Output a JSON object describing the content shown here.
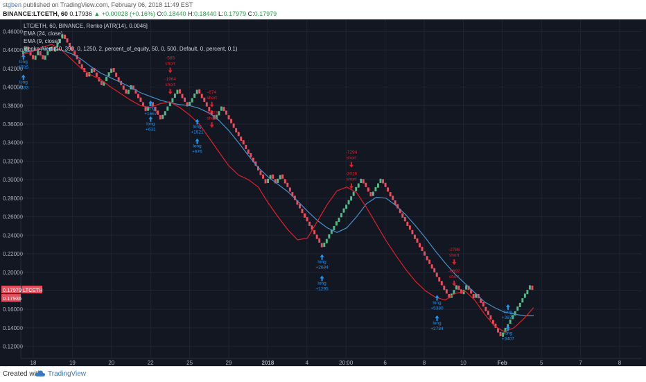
{
  "header": {
    "author": "stgben",
    "published": "published on TradingView.com, February 06, 2018 11:49 EST",
    "symbol": "BINANCE:LTCETH, 60",
    "last": "0.17936",
    "change": "▲ +0.00028 (+0.16%)",
    "o_label": "O:",
    "o_value": "0.18440",
    "h_label": "H:",
    "h_value": "0.18440",
    "l_label": "L:",
    "l_value": "0.17979",
    "c_label": "C:",
    "c_value": "0.17979"
  },
  "legend": [
    "LTC/ETH, 60, BINANCE, Renko [ATR(14), 0.0046]",
    "EMA (24, close)",
    "EMA (9, close)",
    "Renko Alert (10, 390, 0, 1250, 2, percent_of_equity, 50, 0, 500, Default, 0, percent, 0.1)"
  ],
  "footer": {
    "created": "Created with",
    "brand": "TradingView"
  },
  "colors": {
    "up": "#53b987",
    "down": "#eb4d5c",
    "ema24": "#4a90c8",
    "ema9": "#e0202a",
    "bg": "#131722",
    "grid": "#1f2433",
    "axis_text": "#b2b5be",
    "long": "#2196f3",
    "short": "#e0202a"
  },
  "chart_data": {
    "type": "renko",
    "ylim": [
      0.11,
      0.47
    ],
    "y_ticks": [
      "0.46000",
      "0.44000",
      "0.42000",
      "0.40000",
      "0.38000",
      "0.36000",
      "0.34000",
      "0.32000",
      "0.30000",
      "0.28000",
      "0.26000",
      "0.24000",
      "0.22000",
      "0.20000",
      "0.18000",
      "0.16000",
      "0.14000",
      "0.12000"
    ],
    "x_ticks": [
      "18",
      "19",
      "20",
      "22",
      "25",
      "29",
      "2018",
      "4",
      "20:00",
      "6",
      "8",
      "10",
      "Feb",
      "5",
      "7",
      "8"
    ],
    "price_tags": [
      {
        "text": "0.17979",
        "label": "LTCETH"
      },
      {
        "text": "0.17936"
      }
    ],
    "brick_size": 0.0046,
    "bricks": [
      0.439,
      0.443,
      0.439,
      0.434,
      0.43,
      0.434,
      0.439,
      0.434,
      0.43,
      0.434,
      0.439,
      0.443,
      0.439,
      0.443,
      0.448,
      0.452,
      0.457,
      0.452,
      0.448,
      0.443,
      0.439,
      0.434,
      0.43,
      0.425,
      0.42,
      0.416,
      0.411,
      0.416,
      0.42,
      0.416,
      0.411,
      0.406,
      0.402,
      0.406,
      0.411,
      0.416,
      0.42,
      0.416,
      0.411,
      0.406,
      0.402,
      0.397,
      0.393,
      0.397,
      0.402,
      0.397,
      0.393,
      0.388,
      0.384,
      0.379,
      0.374,
      0.379,
      0.384,
      0.379,
      0.374,
      0.37,
      0.365,
      0.37,
      0.374,
      0.379,
      0.384,
      0.388,
      0.393,
      0.397,
      0.393,
      0.388,
      0.384,
      0.379,
      0.384,
      0.388,
      0.393,
      0.397,
      0.393,
      0.388,
      0.384,
      0.379,
      0.374,
      0.37,
      0.365,
      0.37,
      0.374,
      0.379,
      0.374,
      0.37,
      0.365,
      0.361,
      0.356,
      0.351,
      0.347,
      0.342,
      0.338,
      0.333,
      0.328,
      0.324,
      0.319,
      0.315,
      0.31,
      0.305,
      0.301,
      0.296,
      0.301,
      0.305,
      0.301,
      0.296,
      0.301,
      0.305,
      0.301,
      0.296,
      0.292,
      0.287,
      0.282,
      0.278,
      0.273,
      0.269,
      0.264,
      0.259,
      0.255,
      0.25,
      0.246,
      0.241,
      0.236,
      0.232,
      0.227,
      0.232,
      0.236,
      0.241,
      0.246,
      0.25,
      0.255,
      0.259,
      0.264,
      0.269,
      0.273,
      0.278,
      0.282,
      0.287,
      0.292,
      0.296,
      0.301,
      0.296,
      0.292,
      0.287,
      0.282,
      0.287,
      0.292,
      0.296,
      0.301,
      0.296,
      0.292,
      0.287,
      0.282,
      0.278,
      0.273,
      0.269,
      0.264,
      0.259,
      0.255,
      0.25,
      0.246,
      0.241,
      0.236,
      0.232,
      0.227,
      0.223,
      0.218,
      0.213,
      0.209,
      0.204,
      0.2,
      0.195,
      0.19,
      0.186,
      0.181,
      0.177,
      0.172,
      0.177,
      0.181,
      0.186,
      0.181,
      0.177,
      0.181,
      0.186,
      0.181,
      0.177,
      0.172,
      0.177,
      0.172,
      0.167,
      0.163,
      0.158,
      0.154,
      0.149,
      0.144,
      0.14,
      0.135,
      0.131,
      0.135,
      0.14,
      0.144,
      0.149,
      0.154,
      0.158,
      0.163,
      0.167,
      0.172,
      0.177,
      0.181,
      0.186,
      0.181
    ],
    "ema24": [
      0.437,
      0.439,
      0.441,
      0.441,
      0.44,
      0.436,
      0.43,
      0.422,
      0.415,
      0.41,
      0.405,
      0.4,
      0.394,
      0.39,
      0.386,
      0.383,
      0.381,
      0.38,
      0.377,
      0.372,
      0.364,
      0.353,
      0.34,
      0.326,
      0.313,
      0.303,
      0.295,
      0.287,
      0.277,
      0.266,
      0.256,
      0.248,
      0.243,
      0.248,
      0.26,
      0.274,
      0.281,
      0.28,
      0.272,
      0.262,
      0.25,
      0.237,
      0.223,
      0.21,
      0.198,
      0.188,
      0.178,
      0.168,
      0.162,
      0.157,
      0.155,
      0.153,
      0.153
    ],
    "ema9": [
      0.435,
      0.438,
      0.443,
      0.446,
      0.44,
      0.43,
      0.42,
      0.413,
      0.408,
      0.4,
      0.393,
      0.386,
      0.38,
      0.378,
      0.382,
      0.384,
      0.378,
      0.37,
      0.36,
      0.345,
      0.33,
      0.315,
      0.305,
      0.3,
      0.292,
      0.275,
      0.26,
      0.246,
      0.235,
      0.237,
      0.255,
      0.273,
      0.288,
      0.292,
      0.286,
      0.27,
      0.252,
      0.234,
      0.218,
      0.203,
      0.19,
      0.18,
      0.173,
      0.17,
      0.177,
      0.18,
      0.17,
      0.155,
      0.142,
      0.136,
      0.14,
      0.15,
      0.162
    ],
    "signals": [
      {
        "type": "long",
        "lines": [
          "long",
          "1705"
        ],
        "i": 0,
        "y": 0.425
      },
      {
        "type": "long",
        "lines": [
          "long",
          "+533"
        ],
        "i": 0,
        "y": 0.403
      },
      {
        "type": "short",
        "lines": [
          "-585",
          "short"
        ],
        "i": 60,
        "y": 0.424
      },
      {
        "type": "short",
        "lines": [
          "-1964",
          "short"
        ],
        "i": 60,
        "y": 0.401
      },
      {
        "type": "long",
        "lines": [
          "long",
          "+1667"
        ],
        "i": 52,
        "y": 0.375
      },
      {
        "type": "long",
        "lines": [
          "long",
          "+631"
        ],
        "i": 52,
        "y": 0.358
      },
      {
        "type": "short",
        "lines": [
          "-674",
          "short"
        ],
        "i": 77,
        "y": 0.387
      },
      {
        "type": "short",
        "lines": [
          "-3023",
          "short"
        ],
        "i": 77,
        "y": 0.365
      },
      {
        "type": "long",
        "lines": [
          "long",
          "+1921"
        ],
        "i": 71,
        "y": 0.355
      },
      {
        "type": "long",
        "lines": [
          "long",
          "+676"
        ],
        "i": 71,
        "y": 0.334
      },
      {
        "type": "short",
        "lines": [
          "-7294",
          "short"
        ],
        "i": 134,
        "y": 0.322
      },
      {
        "type": "short",
        "lines": [
          "-3026",
          "short"
        ],
        "i": 134,
        "y": 0.299
      },
      {
        "type": "long",
        "lines": [
          "long",
          "+2684"
        ],
        "i": 122,
        "y": 0.209
      },
      {
        "type": "long",
        "lines": [
          "long",
          "+1295"
        ],
        "i": 122,
        "y": 0.186
      },
      {
        "type": "short",
        "lines": [
          "-2786",
          "short"
        ],
        "i": 176,
        "y": 0.217
      },
      {
        "type": "short",
        "lines": [
          "-6892",
          "short"
        ],
        "i": 176,
        "y": 0.194
      },
      {
        "type": "long",
        "lines": [
          "long",
          "+5380"
        ],
        "i": 169,
        "y": 0.165
      },
      {
        "type": "long",
        "lines": [
          "long",
          "+2784"
        ],
        "i": 169,
        "y": 0.143
      },
      {
        "type": "long",
        "lines": [
          "long",
          "+3872"
        ],
        "i": 198,
        "y": 0.155
      },
      {
        "type": "long",
        "lines": [
          "long",
          "+3407"
        ],
        "i": 198,
        "y": 0.132
      }
    ]
  }
}
